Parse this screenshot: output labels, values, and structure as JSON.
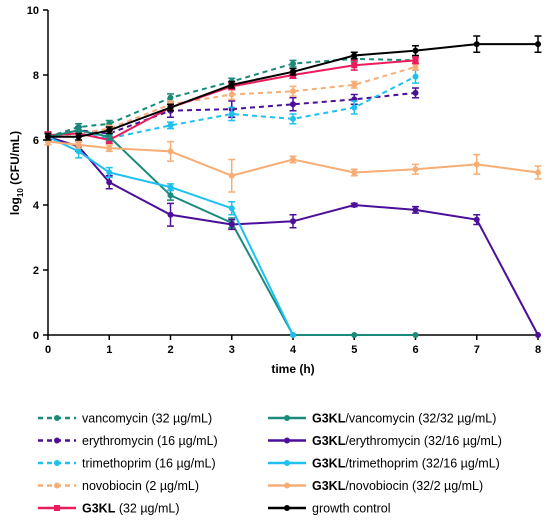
{
  "chart_data": {
    "type": "line",
    "xlabel": "time (h)",
    "ylabel_main": "log",
    "ylabel_sub": "10",
    "ylabel_rest": " (CFU/mL)",
    "xlim": [
      0,
      8
    ],
    "ylim": [
      0,
      10
    ],
    "xticks": [
      "0",
      "1",
      "2",
      "3",
      "4",
      "5",
      "6",
      "7",
      "8"
    ],
    "yticks": [
      "0",
      "2",
      "4",
      "6",
      "8",
      "10"
    ],
    "legend_placement": "bottom, two columns",
    "series": [
      {
        "name": "vancomycin (32 µg/mL)",
        "bold_prefix": "",
        "rest": "vancomycin (32 µg/mL)",
        "color": "#1a8a7a",
        "dashed": true,
        "x": [
          0,
          0.5,
          1,
          2,
          3,
          4,
          5,
          6
        ],
        "y": [
          6.1,
          6.4,
          6.5,
          7.3,
          7.8,
          8.35,
          8.5,
          8.45
        ],
        "err": [
          0.1,
          0.1,
          0.1,
          0.12,
          0.1,
          0.1,
          0.1,
          0.1
        ]
      },
      {
        "name": "erythromycin (16 µg/mL)",
        "bold_prefix": "",
        "rest": "erythromycin (16 µg/mL)",
        "color": "#4b0f9a",
        "dashed": true,
        "x": [
          0,
          0.5,
          1,
          2,
          3,
          4,
          5,
          6
        ],
        "y": [
          6.1,
          6.3,
          6.2,
          6.9,
          6.95,
          7.1,
          7.25,
          7.45
        ],
        "err": [
          0.1,
          0.1,
          0.1,
          0.2,
          0.25,
          0.2,
          0.15,
          0.15
        ]
      },
      {
        "name": "trimethoprim (16 µg/mL)",
        "bold_prefix": "",
        "rest": "trimethoprim (16 µg/mL)",
        "color": "#1ec0ef",
        "dashed": true,
        "x": [
          0,
          0.5,
          1,
          2,
          3,
          4,
          5,
          6
        ],
        "y": [
          6.1,
          6.2,
          6.05,
          6.45,
          6.8,
          6.65,
          7.0,
          7.95
        ],
        "err": [
          0.1,
          0.1,
          0.1,
          0.1,
          0.2,
          0.15,
          0.2,
          0.2
        ]
      },
      {
        "name": "novobiocin (2 µg/mL)",
        "bold_prefix": "",
        "rest": "novobiocin (2 µg/mL)",
        "color": "#f6ae76",
        "dashed": true,
        "x": [
          0,
          0.5,
          1,
          2,
          3,
          4,
          5,
          6
        ],
        "y": [
          6.1,
          6.2,
          6.35,
          7.1,
          7.4,
          7.5,
          7.7,
          8.25
        ],
        "err": [
          0.1,
          0.1,
          0.1,
          0.1,
          0.15,
          0.15,
          0.1,
          0.1
        ]
      },
      {
        "name": "G3KL (32 µg/mL)",
        "bold_prefix": "G3KL",
        "rest": " (32 µg/mL)",
        "color": "#ec1c5c",
        "dashed": false,
        "x": [
          0,
          0.5,
          1,
          2,
          3,
          4,
          5,
          6
        ],
        "y": [
          6.15,
          6.2,
          6.0,
          7.0,
          7.65,
          8.0,
          8.3,
          8.45
        ],
        "err": [
          0.1,
          0.1,
          0.1,
          0.1,
          0.1,
          0.1,
          0.15,
          0.1
        ]
      },
      {
        "name": "G3KL/vancomycin (32/32 µg/mL)",
        "bold_prefix": "G3KL",
        "rest": "/vancomycin (32/32 µg/mL)",
        "color": "#1a8a7a",
        "dashed": false,
        "x": [
          0,
          0.5,
          1,
          2,
          3,
          4,
          5,
          6
        ],
        "y": [
          6.1,
          6.3,
          6.1,
          4.3,
          3.45,
          0,
          0,
          0
        ],
        "err": [
          0.1,
          0.1,
          0.1,
          0.15,
          0.15,
          0,
          0,
          0
        ]
      },
      {
        "name": "G3KL/erythromycin (32/16 µg/mL)",
        "bold_prefix": "G3KL",
        "rest": "/erythromycin (32/16 µg/mL)",
        "color": "#4b0f9a",
        "dashed": false,
        "x": [
          0,
          0.5,
          1,
          2,
          3,
          4,
          5,
          6,
          7,
          8
        ],
        "y": [
          6.1,
          5.8,
          4.7,
          3.7,
          3.4,
          3.5,
          4.0,
          3.85,
          3.55,
          0
        ],
        "err": [
          0.1,
          0.15,
          0.2,
          0.35,
          0.15,
          0.2,
          0.05,
          0.1,
          0.15,
          0
        ]
      },
      {
        "name": "G3KL/trimethoprim (32/16 µg/mL)",
        "bold_prefix": "G3KL",
        "rest": "/trimethoprim (32/16 µg/mL)",
        "color": "#1ec0ef",
        "dashed": false,
        "x": [
          0,
          0.5,
          1,
          2,
          3,
          4
        ],
        "y": [
          6.1,
          5.65,
          5.0,
          4.55,
          3.9,
          0
        ],
        "err": [
          0.1,
          0.2,
          0.15,
          0.1,
          0.2,
          0
        ]
      },
      {
        "name": "G3KL/novobiocin (32/2 µg/mL)",
        "bold_prefix": "G3KL",
        "rest": "/novobiocin (32/2 µg/mL)",
        "color": "#f6ae76",
        "dashed": false,
        "x": [
          0,
          0.5,
          1,
          2,
          3,
          4,
          5,
          6,
          7,
          8
        ],
        "y": [
          5.95,
          5.85,
          5.75,
          5.65,
          4.9,
          5.4,
          5.0,
          5.1,
          5.25,
          5.0
        ],
        "err": [
          0.1,
          0.1,
          0.1,
          0.3,
          0.5,
          0.1,
          0.1,
          0.15,
          0.3,
          0.2
        ]
      },
      {
        "name": "growth control",
        "bold_prefix": "",
        "rest": "growth control",
        "color": "#000000",
        "dashed": false,
        "x": [
          0,
          0.5,
          1,
          2,
          3,
          4,
          5,
          6,
          7,
          8
        ],
        "y": [
          6.1,
          6.1,
          6.3,
          7.0,
          7.7,
          8.1,
          8.6,
          8.75,
          8.95,
          8.95
        ],
        "err": [
          0.1,
          0.1,
          0.1,
          0.1,
          0.1,
          0.1,
          0.1,
          0.15,
          0.25,
          0.25
        ]
      }
    ]
  }
}
